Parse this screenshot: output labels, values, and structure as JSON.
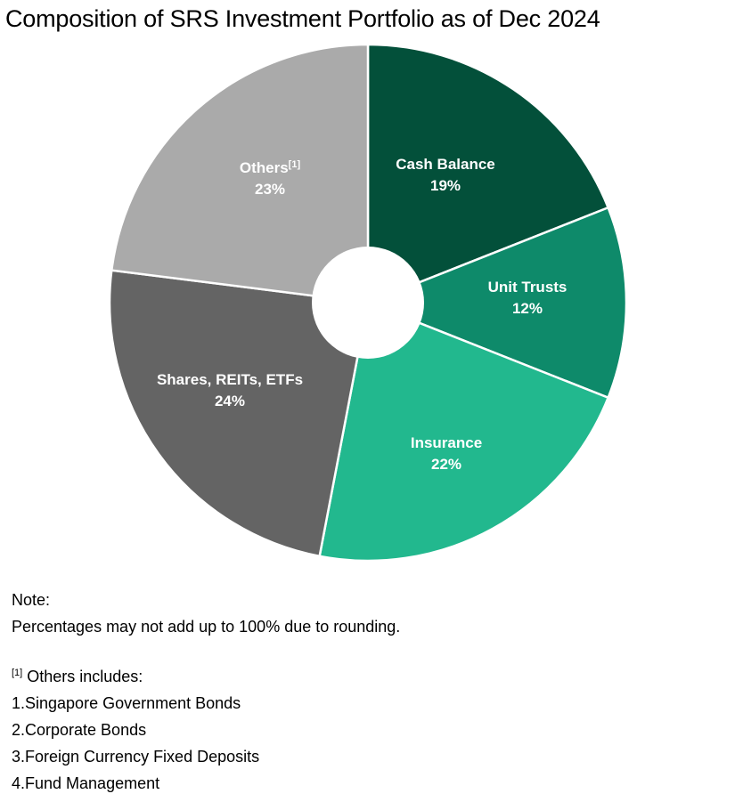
{
  "title": "Composition of SRS Investment Portfolio as of Dec 2024",
  "chart_data": {
    "type": "pie",
    "variant": "donut",
    "title": "Composition of SRS Investment Portfolio as of Dec 2024",
    "start_angle": "12 o'clock, clockwise",
    "categories": [
      "Cash Balance",
      "Unit Trusts",
      "Insurance",
      "Shares, REITs, ETFs",
      "Others"
    ],
    "values": [
      19,
      12,
      22,
      24,
      23
    ],
    "unit": "%",
    "colors": [
      "#03503A",
      "#0E8A6A",
      "#22B88E",
      "#646464",
      "#AAAAAA"
    ],
    "labels": [
      "Cash Balance\n19%",
      "Unit Trusts\n12%",
      "Insurance\n22%",
      "Shares, REITs, ETFs\n24%",
      "Others[1]\n23%"
    ],
    "annotations": [
      "Percentages may not add up to 100% due to rounding."
    ],
    "legend": "none (labels inside slices)"
  },
  "slices": [
    {
      "name": "Cash Balance",
      "pct": "19%",
      "footnote": ""
    },
    {
      "name": "Unit Trusts",
      "pct": "12%",
      "footnote": ""
    },
    {
      "name": "Insurance",
      "pct": "22%",
      "footnote": ""
    },
    {
      "name": "Shares, REITs, ETFs",
      "pct": "24%",
      "footnote": ""
    },
    {
      "name": "Others",
      "pct": "23%",
      "footnote": "[1]"
    }
  ],
  "notes": {
    "heading": "Note:",
    "rounding": "Percentages may not add up to 100% due to rounding.",
    "footnote_marker": "[1]",
    "others_heading": "Others includes:",
    "others_items": [
      "1.Singapore Government Bonds",
      "2.Corporate Bonds",
      "3.Foreign Currency Fixed Deposits",
      "4.Fund Management"
    ]
  }
}
